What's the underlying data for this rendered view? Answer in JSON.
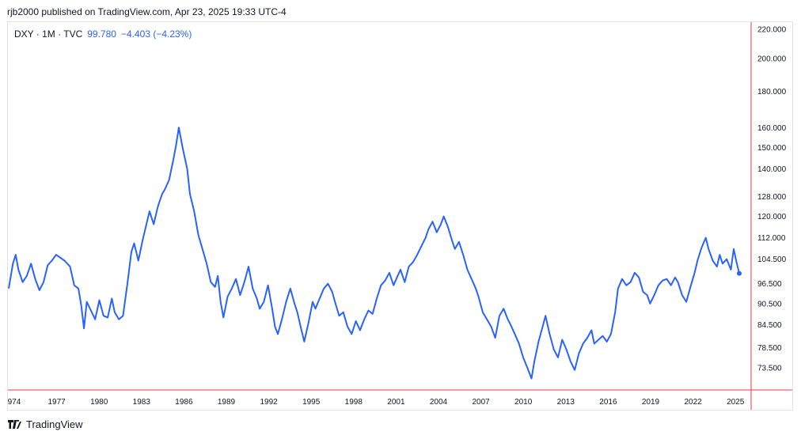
{
  "publisher_line": "rjb2000 published on TradingView.com, Apr 23, 2025 19:33 UTC-4",
  "legend": {
    "symbol": "DXY · 1M · TVC",
    "last": "99.780",
    "change": "−4.403 (−4.23%)"
  },
  "footer": {
    "brand": "TradingView",
    "logo_icon": "tradingview-logo-icon"
  },
  "colors": {
    "line": "#2962ff",
    "axis_border": "#f23645",
    "text": "#131722"
  },
  "chart_data": {
    "type": "line",
    "title": "",
    "xlabel": "",
    "ylabel": "",
    "y_scale": "log",
    "ylim": [
      68,
      225
    ],
    "xlim": [
      1973.9,
      2026.3
    ],
    "grid": false,
    "series": [
      {
        "values_description": "",
        "points": [
          [
            1973.9,
            95.0
          ],
          [
            1974.2,
            103.0
          ],
          [
            1974.4,
            106.0
          ],
          [
            1974.6,
            101.0
          ],
          [
            1974.9,
            97.0
          ],
          [
            1975.2,
            99.0
          ],
          [
            1975.5,
            103.0
          ],
          [
            1975.8,
            98.0
          ],
          [
            1976.1,
            94.5
          ],
          [
            1976.4,
            97.0
          ],
          [
            1976.7,
            102.5
          ],
          [
            1977.0,
            104.0
          ],
          [
            1977.3,
            106.0
          ],
          [
            1977.6,
            105.0
          ],
          [
            1977.9,
            104.0
          ],
          [
            1978.3,
            102.0
          ],
          [
            1978.6,
            96.0
          ],
          [
            1978.9,
            95.0
          ],
          [
            1979.1,
            90.0
          ],
          [
            1979.3,
            83.5
          ],
          [
            1979.5,
            91.0
          ],
          [
            1979.8,
            88.5
          ],
          [
            1980.1,
            86.0
          ],
          [
            1980.4,
            91.5
          ],
          [
            1980.7,
            87.0
          ],
          [
            1981.0,
            86.5
          ],
          [
            1981.3,
            92.0
          ],
          [
            1981.5,
            88.0
          ],
          [
            1981.8,
            86.0
          ],
          [
            1982.1,
            87.0
          ],
          [
            1982.4,
            96.0
          ],
          [
            1982.7,
            107.0
          ],
          [
            1982.9,
            110.0
          ],
          [
            1983.2,
            104.0
          ],
          [
            1983.5,
            111.0
          ],
          [
            1983.8,
            117.5
          ],
          [
            1984.0,
            122.0
          ],
          [
            1984.3,
            117.0
          ],
          [
            1984.6,
            124.0
          ],
          [
            1984.9,
            129.0
          ],
          [
            1985.1,
            131.0
          ],
          [
            1985.4,
            135.0
          ],
          [
            1985.7,
            144.0
          ],
          [
            1985.9,
            151.0
          ],
          [
            1986.1,
            160.0
          ],
          [
            1986.4,
            149.0
          ],
          [
            1986.7,
            140.0
          ],
          [
            1986.9,
            129.0
          ],
          [
            1987.2,
            122.0
          ],
          [
            1987.5,
            113.0
          ],
          [
            1987.8,
            108.0
          ],
          [
            1988.1,
            103.0
          ],
          [
            1988.4,
            97.0
          ],
          [
            1988.7,
            95.5
          ],
          [
            1988.9,
            99.0
          ],
          [
            1989.1,
            91.0
          ],
          [
            1989.3,
            86.5
          ],
          [
            1989.6,
            92.5
          ],
          [
            1989.9,
            95.0
          ],
          [
            1990.2,
            98.0
          ],
          [
            1990.5,
            93.0
          ],
          [
            1990.8,
            97.0
          ],
          [
            1991.1,
            102.0
          ],
          [
            1991.4,
            95.0
          ],
          [
            1991.7,
            92.0
          ],
          [
            1991.9,
            89.0
          ],
          [
            1992.2,
            91.0
          ],
          [
            1992.5,
            96.0
          ],
          [
            1992.8,
            89.0
          ],
          [
            1993.0,
            84.0
          ],
          [
            1993.2,
            82.0
          ],
          [
            1993.5,
            86.0
          ],
          [
            1993.8,
            91.0
          ],
          [
            1994.1,
            95.0
          ],
          [
            1994.4,
            90.5
          ],
          [
            1994.6,
            88.0
          ],
          [
            1994.9,
            83.0
          ],
          [
            1995.1,
            80.0
          ],
          [
            1995.4,
            85.0
          ],
          [
            1995.7,
            91.0
          ],
          [
            1995.9,
            89.0
          ],
          [
            1996.2,
            92.0
          ],
          [
            1996.5,
            95.0
          ],
          [
            1996.8,
            96.5
          ],
          [
            1997.1,
            94.0
          ],
          [
            1997.3,
            91.0
          ],
          [
            1997.6,
            87.0
          ],
          [
            1997.9,
            88.0
          ],
          [
            1998.2,
            84.0
          ],
          [
            1998.5,
            82.0
          ],
          [
            1998.8,
            85.5
          ],
          [
            1999.1,
            83.0
          ],
          [
            1999.4,
            86.0
          ],
          [
            1999.7,
            88.5
          ],
          [
            2000.0,
            87.5
          ],
          [
            2000.3,
            92.0
          ],
          [
            2000.6,
            96.0
          ],
          [
            2000.9,
            97.5
          ],
          [
            2001.2,
            100.0
          ],
          [
            2001.5,
            96.0
          ],
          [
            2001.8,
            99.0
          ],
          [
            2002.0,
            101.0
          ],
          [
            2002.3,
            97.0
          ],
          [
            2002.6,
            102.0
          ],
          [
            2002.9,
            103.5
          ],
          [
            2003.2,
            106.0
          ],
          [
            2003.5,
            109.0
          ],
          [
            2003.8,
            112.0
          ],
          [
            2004.0,
            115.0
          ],
          [
            2004.3,
            118.0
          ],
          [
            2004.6,
            114.0
          ],
          [
            2004.9,
            117.0
          ],
          [
            2005.1,
            120.0
          ],
          [
            2005.4,
            116.0
          ],
          [
            2005.7,
            111.0
          ],
          [
            2005.9,
            108.0
          ],
          [
            2006.2,
            110.5
          ],
          [
            2006.5,
            106.0
          ],
          [
            2006.8,
            101.0
          ],
          [
            2007.1,
            98.0
          ],
          [
            2007.4,
            95.0
          ],
          [
            2007.6,
            92.5
          ],
          [
            2007.9,
            88.0
          ],
          [
            2008.2,
            86.0
          ],
          [
            2008.5,
            84.0
          ],
          [
            2008.8,
            81.0
          ],
          [
            2009.1,
            87.0
          ],
          [
            2009.4,
            89.0
          ],
          [
            2009.7,
            86.0
          ],
          [
            2009.9,
            84.5
          ],
          [
            2010.2,
            82.0
          ],
          [
            2010.5,
            79.5
          ],
          [
            2010.8,
            76.0
          ],
          [
            2011.1,
            73.5
          ],
          [
            2011.4,
            71.0
          ],
          [
            2011.6,
            75.0
          ],
          [
            2011.9,
            80.0
          ],
          [
            2012.2,
            84.0
          ],
          [
            2012.4,
            87.0
          ],
          [
            2012.7,
            82.0
          ],
          [
            2013.0,
            78.0
          ],
          [
            2013.3,
            76.0
          ],
          [
            2013.6,
            80.5
          ],
          [
            2013.9,
            78.0
          ],
          [
            2014.2,
            75.0
          ],
          [
            2014.5,
            73.0
          ],
          [
            2014.8,
            77.0
          ],
          [
            2015.1,
            79.5
          ],
          [
            2015.4,
            81.0
          ],
          [
            2015.7,
            83.0
          ],
          [
            2015.9,
            79.5
          ],
          [
            2016.2,
            80.5
          ],
          [
            2016.5,
            81.5
          ],
          [
            2016.8,
            80.0
          ],
          [
            2017.1,
            82.0
          ],
          [
            2017.4,
            88.0
          ],
          [
            2017.6,
            95.0
          ],
          [
            2017.9,
            98.0
          ],
          [
            2018.2,
            96.0
          ],
          [
            2018.5,
            97.0
          ],
          [
            2018.8,
            100.0
          ],
          [
            2019.1,
            98.5
          ],
          [
            2019.4,
            94.0
          ],
          [
            2019.7,
            93.0
          ],
          [
            2019.9,
            90.5
          ],
          [
            2020.2,
            93.0
          ],
          [
            2020.5,
            96.0
          ],
          [
            2020.8,
            97.5
          ],
          [
            2021.1,
            98.0
          ],
          [
            2021.4,
            96.0
          ],
          [
            2021.7,
            98.5
          ],
          [
            2021.9,
            97.0
          ],
          [
            2022.2,
            93.0
          ],
          [
            2022.5,
            91.0
          ],
          [
            2022.8,
            95.5
          ],
          [
            2023.1,
            100.0
          ],
          [
            2023.3,
            104.0
          ],
          [
            2023.6,
            108.5
          ],
          [
            2023.9,
            112.0
          ],
          [
            2024.1,
            108.0
          ],
          [
            2024.4,
            104.0
          ],
          [
            2024.7,
            102.0
          ],
          [
            2024.9,
            106.0
          ],
          [
            2025.1,
            103.0
          ],
          [
            2025.4,
            104.5
          ],
          [
            2025.7,
            101.0
          ],
          [
            2025.9,
            108.0
          ],
          [
            2026.1,
            103.5
          ],
          [
            2026.3,
            99.78
          ]
        ]
      }
    ],
    "y_ticks": [
      "220.000",
      "200.000",
      "180.000",
      "160.000",
      "150.000",
      "140.000",
      "128.000",
      "120.000",
      "112.000",
      "104.500",
      "96.500",
      "90.500",
      "84.500",
      "78.500",
      "73.500"
    ],
    "x_ticks": [
      "974",
      "1977",
      "1980",
      "1983",
      "1986",
      "1989",
      "1992",
      "1995",
      "1998",
      "2001",
      "2004",
      "2007",
      "2010",
      "2013",
      "2016",
      "2019",
      "2022",
      "2025"
    ]
  }
}
